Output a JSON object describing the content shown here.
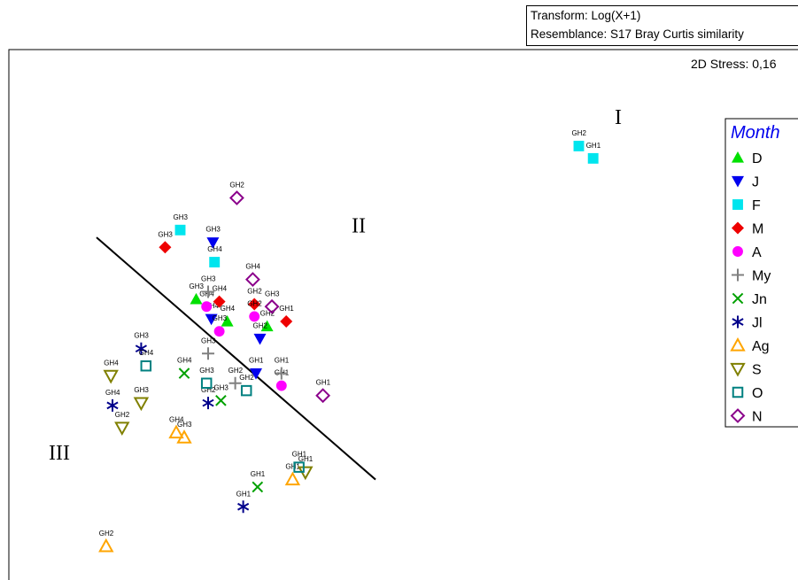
{
  "header": {
    "transform": "Transform: Log(X+1)",
    "resemblance": "Resemblance: S17 Bray Curtis similarity"
  },
  "chart_data": {
    "type": "scatter",
    "title": "",
    "xlabel": "",
    "ylabel": "",
    "stress_label": "2D Stress: 0,16",
    "xlim": [
      0,
      100
    ],
    "ylim": [
      0,
      100
    ],
    "grid": false,
    "legend_position": "right",
    "legend_title": "Month",
    "cluster_labels": [
      {
        "text": "I",
        "x": 76,
        "y": 90
      },
      {
        "text": "II",
        "x": 43,
        "y": 68
      },
      {
        "text": "III",
        "x": 5,
        "y": 22
      }
    ],
    "divider": {
      "x1": 11,
      "y1": 67,
      "x2": 46,
      "y2": 18
    },
    "series": [
      {
        "name": "D",
        "marker": "triangle-up-filled",
        "color": "#00e000",
        "points": [
          {
            "x": 23.5,
            "y": 54.5,
            "label": "GH3"
          },
          {
            "x": 27.4,
            "y": 50,
            "label": "GH4"
          },
          {
            "x": 32.4,
            "y": 49,
            "label": "GH2"
          }
        ]
      },
      {
        "name": "J",
        "marker": "triangle-down-filled",
        "color": "#0000ee",
        "points": [
          {
            "x": 25.6,
            "y": 66,
            "label": "GH3"
          },
          {
            "x": 25.4,
            "y": 50.5,
            "label": "GH4"
          },
          {
            "x": 31.5,
            "y": 46.5,
            "label": "GH2"
          },
          {
            "x": 31,
            "y": 39.5,
            "label": "GH1"
          }
        ]
      },
      {
        "name": "F",
        "marker": "square-filled",
        "color": "#00e5ee",
        "points": [
          {
            "x": 71.5,
            "y": 85.5,
            "label": "GH2"
          },
          {
            "x": 73.3,
            "y": 83,
            "label": "GH1"
          },
          {
            "x": 21.5,
            "y": 68.5,
            "label": "GH3"
          },
          {
            "x": 25.8,
            "y": 62,
            "label": "GH4"
          }
        ]
      },
      {
        "name": "M",
        "marker": "diamond-filled",
        "color": "#ee0000",
        "points": [
          {
            "x": 19.6,
            "y": 65,
            "label": "GH3"
          },
          {
            "x": 26.4,
            "y": 54,
            "label": "GH4"
          },
          {
            "x": 30.8,
            "y": 53.5,
            "label": "GH2"
          },
          {
            "x": 34.8,
            "y": 50,
            "label": "GH1"
          }
        ]
      },
      {
        "name": "A",
        "marker": "circle-filled",
        "color": "#ff00ff",
        "points": [
          {
            "x": 24.8,
            "y": 53,
            "label": "GH4"
          },
          {
            "x": 26.4,
            "y": 48,
            "label": "GH3"
          },
          {
            "x": 30.8,
            "y": 51,
            "label": "GH2"
          },
          {
            "x": 34.2,
            "y": 37,
            "label": "GH1"
          }
        ]
      },
      {
        "name": "My",
        "marker": "plus",
        "color": "#808080",
        "points": [
          {
            "x": 25,
            "y": 56,
            "label": "GH3"
          },
          {
            "x": 25,
            "y": 43.5,
            "label": "GH3"
          },
          {
            "x": 28.4,
            "y": 37.5,
            "label": "GH2"
          },
          {
            "x": 34.2,
            "y": 39.5,
            "label": "GH1"
          }
        ]
      },
      {
        "name": "Jn",
        "marker": "x",
        "color": "#00a000",
        "points": [
          {
            "x": 22,
            "y": 39.5,
            "label": "GH4"
          },
          {
            "x": 26.6,
            "y": 34,
            "label": "GH3"
          },
          {
            "x": 31.2,
            "y": 16.5,
            "label": "GH1"
          }
        ]
      },
      {
        "name": "Jl",
        "marker": "asterisk",
        "color": "#00008b",
        "points": [
          {
            "x": 16.6,
            "y": 44.5,
            "label": "GH3"
          },
          {
            "x": 13,
            "y": 33,
            "label": "GH4"
          },
          {
            "x": 25,
            "y": 33.5,
            "label": "GH2"
          },
          {
            "x": 29.4,
            "y": 12.5,
            "label": "GH1"
          }
        ]
      },
      {
        "name": "Ag",
        "marker": "triangle-up-open",
        "color": "#ffa500",
        "points": [
          {
            "x": 21,
            "y": 27.5,
            "label": "GH4"
          },
          {
            "x": 22,
            "y": 26.5,
            "label": "GH3"
          },
          {
            "x": 35.6,
            "y": 18,
            "label": "GH1"
          },
          {
            "x": 12.2,
            "y": 4.5,
            "label": "GH2"
          }
        ]
      },
      {
        "name": "S",
        "marker": "triangle-down-open",
        "color": "#808000",
        "points": [
          {
            "x": 12.8,
            "y": 39,
            "label": "GH4"
          },
          {
            "x": 16.6,
            "y": 33.5,
            "label": "GH3"
          },
          {
            "x": 14.2,
            "y": 28.5,
            "label": "GH2"
          },
          {
            "x": 37.2,
            "y": 19.5,
            "label": "GH1"
          }
        ]
      },
      {
        "name": "O",
        "marker": "square-open",
        "color": "#008080",
        "points": [
          {
            "x": 17.2,
            "y": 41,
            "label": "GH4"
          },
          {
            "x": 24.8,
            "y": 37.5,
            "label": "GH3"
          },
          {
            "x": 29.8,
            "y": 36,
            "label": "GH2"
          },
          {
            "x": 36.4,
            "y": 20.5,
            "label": "GH1"
          }
        ]
      },
      {
        "name": "N",
        "marker": "diamond-open",
        "color": "#8b008b",
        "points": [
          {
            "x": 28.6,
            "y": 75,
            "label": "GH2"
          },
          {
            "x": 30.6,
            "y": 58.5,
            "label": "GH4"
          },
          {
            "x": 33,
            "y": 53,
            "label": "GH3"
          },
          {
            "x": 39.4,
            "y": 35,
            "label": "GH1"
          }
        ]
      }
    ]
  }
}
